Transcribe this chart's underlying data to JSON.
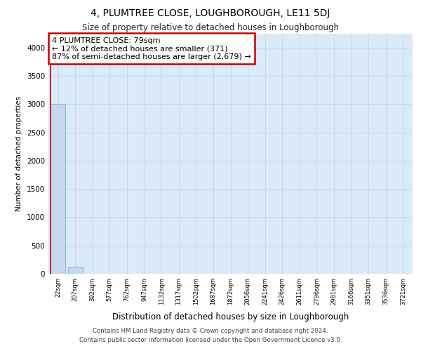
{
  "title": "4, PLUMTREE CLOSE, LOUGHBOROUGH, LE11 5DJ",
  "subtitle": "Size of property relative to detached houses in Loughborough",
  "xlabel": "Distribution of detached houses by size in Loughborough",
  "ylabel": "Number of detached properties",
  "footer_line1": "Contains HM Land Registry data © Crown copyright and database right 2024.",
  "footer_line2": "Contains public sector information licensed under the Open Government Licence v3.0.",
  "categories": [
    "22sqm",
    "207sqm",
    "392sqm",
    "577sqm",
    "762sqm",
    "947sqm",
    "1132sqm",
    "1317sqm",
    "1502sqm",
    "1687sqm",
    "1872sqm",
    "2056sqm",
    "2241sqm",
    "2426sqm",
    "2611sqm",
    "2796sqm",
    "2981sqm",
    "3166sqm",
    "3351sqm",
    "3536sqm",
    "3721sqm"
  ],
  "values": [
    3000,
    125,
    0,
    0,
    0,
    0,
    0,
    0,
    0,
    0,
    0,
    0,
    0,
    0,
    0,
    0,
    0,
    0,
    0,
    0,
    0
  ],
  "bar_color": "#c5d8ee",
  "bar_edge_color": "#7aadd4",
  "grid_color": "#c8d8ea",
  "background_color": "#daeaf8",
  "annotation_text": "4 PLUMTREE CLOSE: 79sqm\n← 12% of detached houses are smaller (371)\n87% of semi-detached houses are larger (2,679) →",
  "annotation_box_color": "#ffffff",
  "annotation_border_color": "#cc0000",
  "red_line_x": -0.42,
  "ylim": [
    0,
    4250
  ],
  "yticks": [
    0,
    500,
    1000,
    1500,
    2000,
    2500,
    3000,
    3500,
    4000
  ]
}
